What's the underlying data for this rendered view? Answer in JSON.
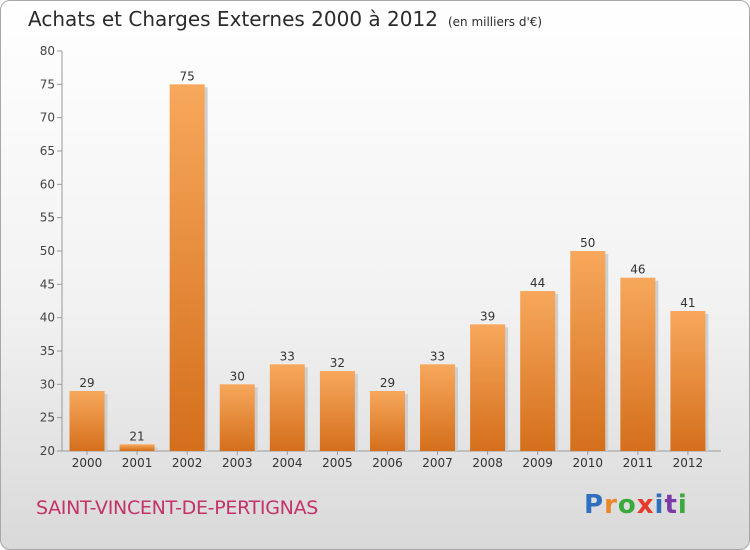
{
  "chart_data": {
    "type": "bar",
    "title": "Achats et Charges Externes 2000 à 2012",
    "subtitle": "(en milliers d'€)",
    "categories": [
      "2000",
      "2001",
      "2002",
      "2003",
      "2004",
      "2005",
      "2006",
      "2007",
      "2008",
      "2009",
      "2010",
      "2011",
      "2012"
    ],
    "values": [
      29,
      21,
      75,
      30,
      33,
      32,
      29,
      33,
      39,
      44,
      50,
      46,
      41
    ],
    "ylim": [
      20,
      80
    ],
    "yticks": [
      20,
      25,
      30,
      35,
      40,
      45,
      50,
      55,
      60,
      65,
      70,
      75,
      80
    ],
    "grid": false,
    "bar_color_top": "#f7a85c",
    "bar_color_bottom": "#d46f1c"
  },
  "location": "SAINT-VINCENT-DE-PERTIGNAS",
  "logo": {
    "letters": [
      "P",
      "r",
      "o",
      "x",
      "i",
      "t",
      "i"
    ],
    "colors": [
      "#2f6fc0",
      "#e8862a",
      "#3aa83a",
      "#e83a2a",
      "#2f6fc0",
      "#7a3aa8",
      "#3aa83a"
    ]
  }
}
